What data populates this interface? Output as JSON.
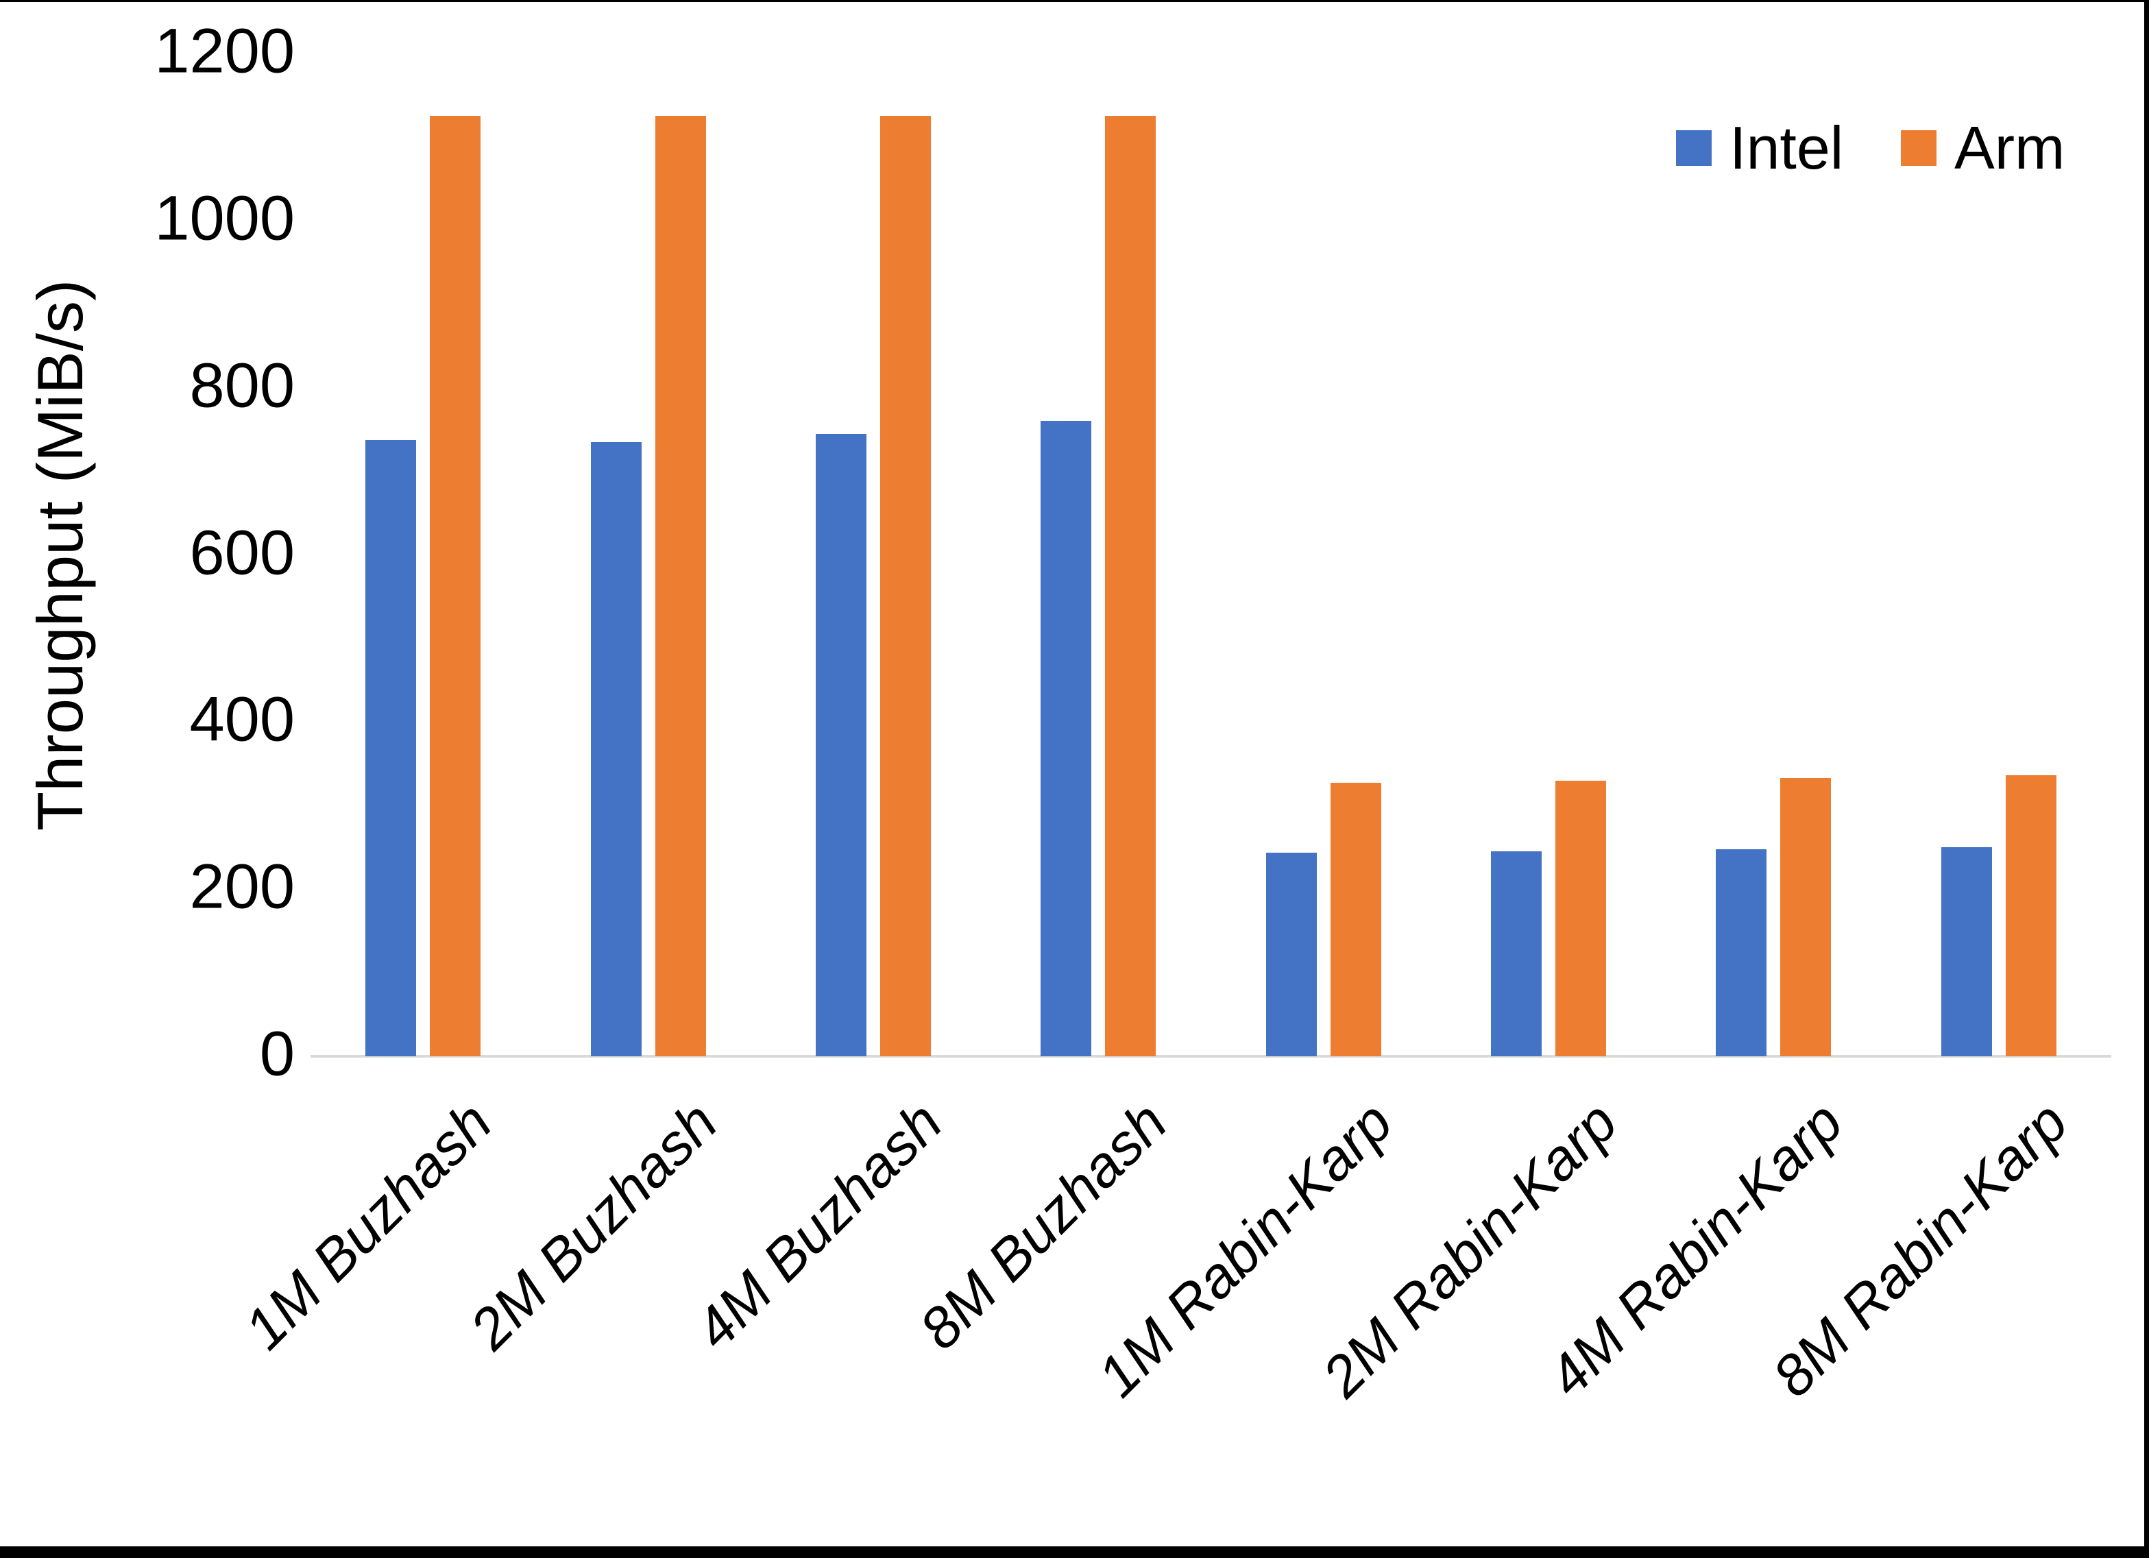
{
  "chart_data": {
    "type": "bar",
    "title": "",
    "xlabel": "",
    "ylabel": "Throughput (MiB/s)",
    "ylim": [
      0,
      1200
    ],
    "yticks": [
      0,
      200,
      400,
      600,
      800,
      1000,
      1200
    ],
    "grid": false,
    "legend_position": "top-right",
    "categories": [
      "1M Buzhash",
      "2M Buzhash",
      "4M Buzhash",
      "8M Buzhash",
      "1M Rabin-Karp",
      "2M Rabin-Karp",
      "4M Rabin-Karp",
      "8M Rabin-Karp"
    ],
    "series": [
      {
        "name": "Intel",
        "color": "#4472C4",
        "values": [
          737,
          735,
          745,
          760,
          244,
          245,
          248,
          250
        ]
      },
      {
        "name": "Arm",
        "color": "#ED7D31",
        "values": [
          1125,
          1125,
          1125,
          1125,
          327,
          330,
          333,
          336
        ]
      }
    ]
  },
  "colors": {
    "background": "#FFFFFF",
    "axis_line": "#D9D9D9",
    "text": "#000000",
    "frame": "#000000"
  }
}
